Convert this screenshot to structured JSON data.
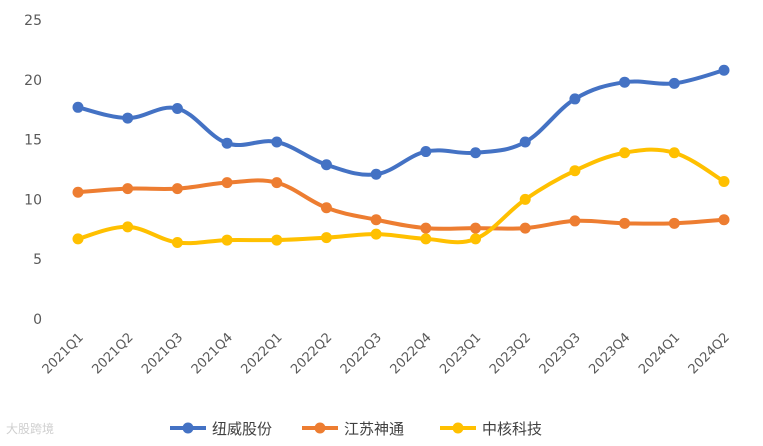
{
  "chart_data": {
    "type": "line",
    "categories": [
      "2021Q1",
      "2021Q2",
      "2021Q3",
      "2021Q4",
      "2022Q1",
      "2022Q2",
      "2022Q3",
      "2022Q4",
      "2023Q1",
      "2023Q2",
      "2023Q3",
      "2023Q4",
      "2024Q1",
      "2024Q2"
    ],
    "series": [
      {
        "name": "纽威股份",
        "color": "#4472C4",
        "values": [
          17.7,
          16.8,
          17.6,
          14.7,
          14.8,
          12.9,
          12.1,
          14.0,
          13.9,
          14.8,
          18.4,
          19.8,
          19.7,
          20.8
        ]
      },
      {
        "name": "江苏神通",
        "color": "#ED7D31",
        "values": [
          10.6,
          10.9,
          10.9,
          11.4,
          11.4,
          9.3,
          8.3,
          7.6,
          7.6,
          7.6,
          8.2,
          8.0,
          8.0,
          8.3
        ]
      },
      {
        "name": "中核科技",
        "color": "#FFC000",
        "values": [
          6.7,
          7.7,
          6.4,
          6.6,
          6.6,
          6.8,
          7.1,
          6.7,
          6.7,
          10.0,
          12.4,
          13.9,
          13.9,
          11.5
        ]
      }
    ],
    "yticks": [
      0,
      5,
      10,
      15,
      20,
      25
    ],
    "ylim": [
      0,
      25
    ],
    "grid": false,
    "legend": "bottom"
  },
  "watermark": "大股跨境"
}
